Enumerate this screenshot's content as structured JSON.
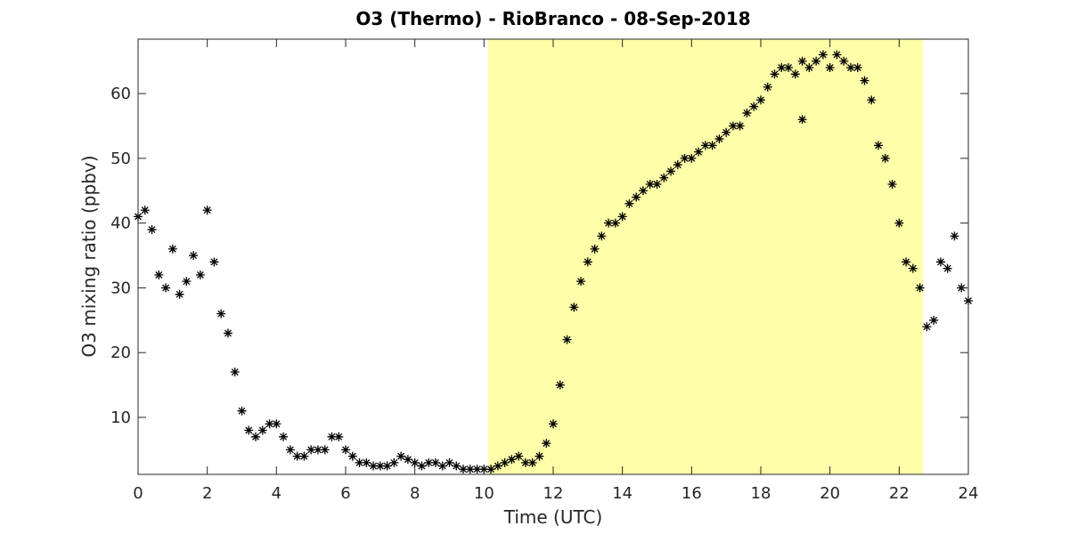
{
  "chart_data": {
    "type": "scatter",
    "title": "O3 (Thermo) - RioBranco - 08-Sep-2018",
    "x_label": "Time (UTC)",
    "y_label": "O3 mixing ratio (ppbv)",
    "xlim": [
      0,
      24
    ],
    "xticks": [
      0,
      2,
      4,
      6,
      8,
      10,
      12,
      14,
      16,
      18,
      20,
      22,
      24
    ],
    "ylim": [
      1.2,
      68.4
    ],
    "yticks": [
      10,
      20,
      30,
      40,
      50,
      60
    ],
    "highlight_x": [
      10.12,
      22.69
    ],
    "highlight_color": "#ffffaa",
    "color": "#000000",
    "marker": "asterisk",
    "x": [
      0,
      0.2,
      0.4,
      0.6,
      0.8,
      1.0,
      1.2,
      1.4,
      1.6,
      1.8,
      2.0,
      2.2,
      2.4,
      2.6,
      2.8,
      3.0,
      3.2,
      3.4,
      3.6,
      3.8,
      4.0,
      4.2,
      4.4,
      4.6,
      4.8,
      5.0,
      5.2,
      5.4,
      5.6,
      5.8,
      6.0,
      6.2,
      6.4,
      6.6,
      6.8,
      7.0,
      7.2,
      7.4,
      7.6,
      7.8,
      8.0,
      8.2,
      8.4,
      8.6,
      8.8,
      9.0,
      9.2,
      9.4,
      9.6,
      9.8,
      10.0,
      10.2,
      10.4,
      10.6,
      10.8,
      11.0,
      11.2,
      11.4,
      11.6,
      11.8,
      12.0,
      12.2,
      12.4,
      12.6,
      12.8,
      13.0,
      13.2,
      13.4,
      13.6,
      13.8,
      14.0,
      14.2,
      14.4,
      14.6,
      14.8,
      15.0,
      15.2,
      15.4,
      15.6,
      15.8,
      16.0,
      16.2,
      16.4,
      16.6,
      16.8,
      17.0,
      17.2,
      17.4,
      17.6,
      17.8,
      18.0,
      18.2,
      18.4,
      18.6,
      18.8,
      19.0,
      19.2,
      19.2,
      19.4,
      19.6,
      19.8,
      20.0,
      20.2,
      20.4,
      20.6,
      20.8,
      21.0,
      21.2,
      21.4,
      21.6,
      21.8,
      22.0,
      22.2,
      22.4,
      22.6,
      22.8,
      23.0,
      23.2,
      23.4,
      23.6,
      23.8,
      24.0
    ],
    "values": [
      41,
      42,
      39,
      32,
      30,
      36,
      29,
      31,
      35,
      32,
      42,
      34,
      26,
      23,
      17,
      11,
      8,
      7,
      8,
      9,
      9,
      7,
      5,
      4,
      4,
      5,
      5,
      5,
      7,
      7,
      5,
      4,
      3,
      3,
      2.5,
      2.5,
      2.5,
      3,
      4,
      3.5,
      3,
      2.5,
      3,
      3,
      2.5,
      3,
      2.5,
      2,
      2,
      2,
      2,
      2,
      2.5,
      3,
      3.5,
      4,
      3,
      3,
      4,
      6,
      9,
      15,
      22,
      27,
      31,
      34,
      36,
      38,
      40,
      40,
      41,
      43,
      44,
      45,
      46,
      46,
      47,
      48,
      49,
      50,
      50,
      51,
      52,
      52,
      53,
      54,
      55,
      55,
      57,
      58,
      59,
      61,
      63,
      64,
      64,
      63,
      65,
      56,
      64,
      65,
      66,
      64,
      66,
      65,
      64,
      64,
      62,
      59,
      52,
      50,
      46,
      40,
      34,
      33,
      30,
      24,
      25,
      34,
      33,
      38,
      30,
      28
    ]
  }
}
